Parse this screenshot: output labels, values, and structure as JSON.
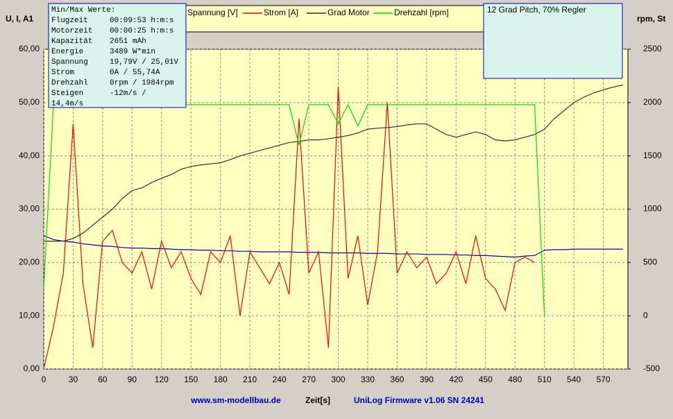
{
  "chart_data": {
    "type": "line",
    "left_axis_label": "U, I, A1",
    "right_axis_label": "rpm, St",
    "x_label": "Zeit[s]",
    "footer_left": "www.sm-modellbau.de",
    "footer_right": "UniLog Firmware v1.06 SN 24241",
    "note": "12 Grad Pitch, 70% Regler",
    "info": {
      "title": "Min/Max Werte:",
      "rows": [
        [
          "Flugzeit",
          "00:09:53 h:m:s"
        ],
        [
          "Motorzeit",
          "00:00:25 h:m:s"
        ],
        [
          "Kapazität",
          "2651 mAh"
        ],
        [
          "Energie",
          "3489 W*min"
        ],
        [
          "Spannung",
          "19,79V / 25,01V"
        ],
        [
          "Strom",
          "0A / 55,74A"
        ],
        [
          "Drehzahl",
          "0rpm / 1984rpm"
        ],
        [
          "Steigen",
          "-12m/s /"
        ]
      ],
      "wrap": "14,4m/s"
    },
    "grid": true,
    "xlim": [
      0,
      595
    ],
    "xticks": [
      0,
      30,
      60,
      90,
      120,
      150,
      180,
      210,
      240,
      270,
      300,
      330,
      360,
      390,
      420,
      450,
      480,
      510,
      540,
      570
    ],
    "ylim": [
      0,
      60
    ],
    "yticks": [
      {
        "value": 0,
        "label": "0,00"
      },
      {
        "value": 10,
        "label": "10,00"
      },
      {
        "value": 20,
        "label": "20,00"
      },
      {
        "value": 30,
        "label": "30,00"
      },
      {
        "value": 40,
        "label": "40,00"
      },
      {
        "value": 50,
        "label": "50,00"
      },
      {
        "value": 60,
        "label": "60,00"
      }
    ],
    "y2lim": [
      -500,
      2500
    ],
    "y2ticks": [
      -500,
      0,
      500,
      1000,
      1500,
      2000,
      2500
    ],
    "x": [
      0,
      10,
      20,
      30,
      40,
      50,
      60,
      70,
      80,
      90,
      100,
      110,
      120,
      130,
      140,
      150,
      160,
      170,
      180,
      190,
      200,
      210,
      220,
      230,
      240,
      250,
      260,
      270,
      280,
      290,
      300,
      310,
      320,
      330,
      340,
      350,
      360,
      370,
      380,
      390,
      400,
      410,
      420,
      430,
      440,
      450,
      460,
      470,
      480,
      490,
      500,
      510,
      520,
      530,
      540,
      550,
      560,
      570,
      580,
      590
    ],
    "series": [
      {
        "name": "Spannung [V]",
        "color": "#0000c0",
        "values": [
          25,
          24.3,
          24,
          23.8,
          23.5,
          23.3,
          23.1,
          23,
          22.8,
          22.7,
          22.7,
          22.6,
          22.6,
          22.5,
          22.4,
          22.4,
          22.3,
          22.3,
          22.2,
          22.2,
          22.1,
          22.1,
          22,
          22,
          22,
          22,
          21.9,
          21.9,
          21.9,
          21.8,
          21.8,
          21.8,
          21.8,
          21.7,
          21.7,
          21.7,
          21.6,
          21.6,
          21.6,
          21.5,
          21.5,
          21.5,
          21.4,
          21.4,
          21.3,
          21.3,
          21.2,
          21.1,
          21,
          21.2,
          21.3,
          22.3,
          22.4,
          22.4,
          22.5,
          22.5,
          22.5,
          22.5,
          22.5,
          22.5
        ]
      },
      {
        "name": "Strom [A]",
        "color": "#ff0000",
        "values": [
          0,
          8,
          18,
          46,
          16,
          4,
          24,
          26,
          20,
          18,
          22,
          15,
          24,
          19,
          22,
          17,
          14,
          22,
          20,
          25,
          10,
          22,
          19,
          16,
          20,
          14,
          47,
          18,
          22,
          4,
          53,
          17,
          25,
          12,
          22,
          50,
          18,
          22,
          19,
          21,
          16,
          18,
          22,
          16,
          25,
          17,
          15,
          11,
          20,
          21,
          20,
          null,
          null,
          null,
          null,
          null,
          null,
          null,
          null,
          null
        ]
      },
      {
        "name": "Grad Motor",
        "color": "#303030",
        "values": [
          24,
          24,
          24,
          24.5,
          25.5,
          27,
          28.5,
          30,
          32,
          33.5,
          34,
          35,
          35.8,
          36.5,
          37.5,
          38,
          38.3,
          38.5,
          38.7,
          39.3,
          40,
          40.5,
          41,
          41.5,
          42,
          42.5,
          42.7,
          43,
          43,
          43.2,
          43.5,
          43.8,
          44.3,
          45,
          45.2,
          45.3,
          45.5,
          45.8,
          46,
          46,
          45,
          44,
          43.5,
          44,
          44.5,
          44,
          43,
          42.8,
          43,
          43.5,
          44,
          45,
          47,
          48.5,
          50,
          51,
          51.8,
          52.4,
          52.9,
          53.3
        ]
      },
      {
        "name": "Drehzahl [rpm]",
        "color": "#00e000",
        "axis": "y2",
        "values": [
          250,
          2000,
          1980,
          1980,
          1980,
          1980,
          1980,
          1980,
          1980,
          1980,
          1980,
          1980,
          1980,
          1980,
          1980,
          1980,
          1980,
          1980,
          1980,
          1980,
          1980,
          1980,
          1980,
          1980,
          1980,
          1980,
          1600,
          1980,
          1980,
          1980,
          1800,
          1980,
          1780,
          1980,
          1980,
          1980,
          1980,
          1980,
          1980,
          1980,
          1980,
          1980,
          1980,
          1980,
          1980,
          1980,
          1980,
          1980,
          1980,
          1980,
          1980,
          0,
          null,
          null,
          null,
          null,
          null,
          null,
          null,
          null
        ]
      }
    ]
  }
}
